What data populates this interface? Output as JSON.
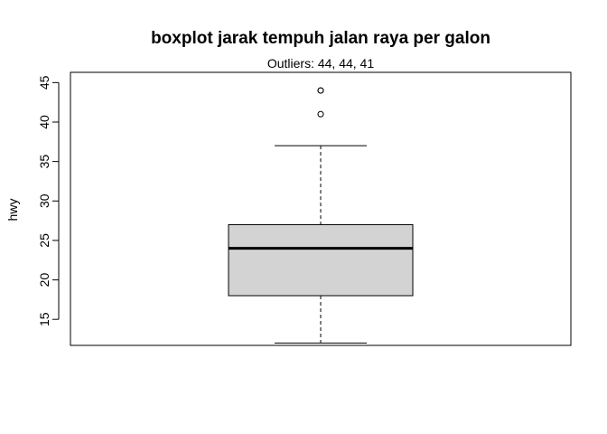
{
  "chart_data": {
    "type": "boxplot",
    "title": "boxplot jarak tempuh jalan raya per galon",
    "subtitle": "Outliers:  44, 44, 41",
    "ylabel": "hwy",
    "xlabel": "",
    "ylim": [
      11.7,
      46.3
    ],
    "yticks": [
      15,
      20,
      25,
      30,
      35,
      40,
      45
    ],
    "grid": false,
    "box": {
      "lower_whisker": 12,
      "q1": 18,
      "median": 24,
      "q3": 27,
      "upper_whisker": 37,
      "outliers": [
        44,
        44,
        41
      ]
    },
    "colors": {
      "box_fill": "#d3d3d3",
      "stroke": "#000000"
    }
  }
}
